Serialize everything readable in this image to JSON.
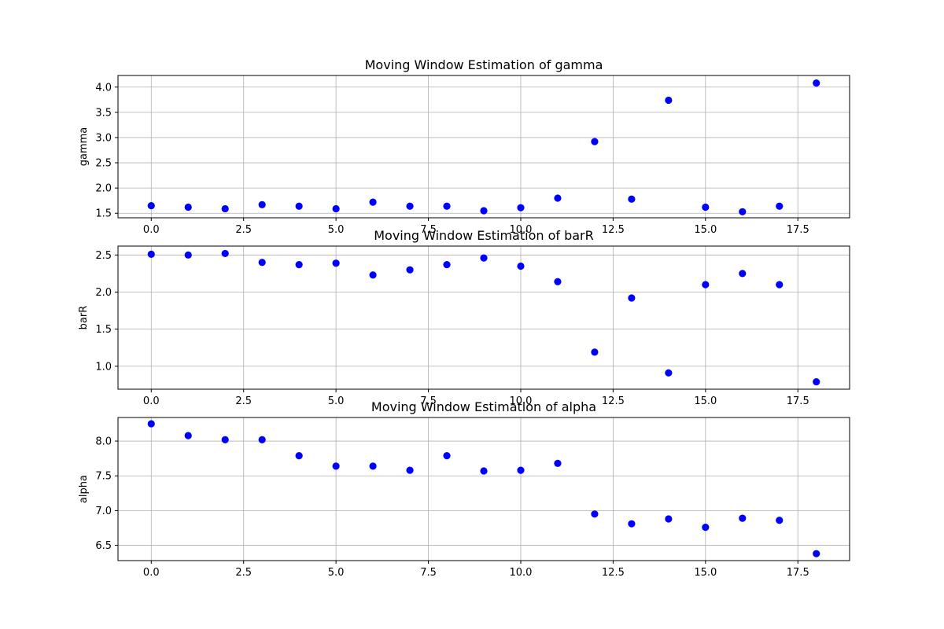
{
  "colors": {
    "marker": "#0000ff",
    "grid": "#b0b0b0",
    "axes": "#000000",
    "background": "#ffffff"
  },
  "chart_data": [
    {
      "type": "scatter",
      "title": "Moving Window Estimation of gamma",
      "xlabel": "",
      "ylabel": "gamma",
      "grid": true,
      "xlim": [
        -0.9,
        18.9
      ],
      "ylim": [
        1.41,
        4.23
      ],
      "xticks": [
        0.0,
        2.5,
        5.0,
        7.5,
        10.0,
        12.5,
        15.0,
        17.5
      ],
      "xtick_labels": [
        "0.0",
        "2.5",
        "5.0",
        "7.5",
        "10.0",
        "12.5",
        "15.0",
        "17.5"
      ],
      "yticks": [
        1.5,
        2.0,
        2.5,
        3.0,
        3.5,
        4.0
      ],
      "ytick_labels": [
        "1.5",
        "2.0",
        "2.5",
        "3.0",
        "3.5",
        "4.0"
      ],
      "x": [
        0,
        1,
        2,
        3,
        4,
        5,
        6,
        7,
        8,
        9,
        10,
        11,
        12,
        13,
        14,
        15,
        16,
        17,
        18
      ],
      "y": [
        1.65,
        1.62,
        1.59,
        1.67,
        1.64,
        1.59,
        1.72,
        1.64,
        1.64,
        1.55,
        1.61,
        1.8,
        2.92,
        1.78,
        3.74,
        1.62,
        1.53,
        1.64,
        4.08
      ]
    },
    {
      "type": "scatter",
      "title": "Moving Window Estimation of barR",
      "xlabel": "",
      "ylabel": "barR",
      "grid": true,
      "xlim": [
        -0.9,
        18.9
      ],
      "ylim": [
        0.69,
        2.62
      ],
      "xticks": [
        0.0,
        2.5,
        5.0,
        7.5,
        10.0,
        12.5,
        15.0,
        17.5
      ],
      "xtick_labels": [
        "0.0",
        "2.5",
        "5.0",
        "7.5",
        "10.0",
        "12.5",
        "15.0",
        "17.5"
      ],
      "yticks": [
        1.0,
        1.5,
        2.0,
        2.5
      ],
      "ytick_labels": [
        "1.0",
        "1.5",
        "2.0",
        "2.5"
      ],
      "x": [
        0,
        1,
        2,
        3,
        4,
        5,
        6,
        7,
        8,
        9,
        10,
        11,
        12,
        13,
        14,
        15,
        16,
        17,
        18
      ],
      "y": [
        2.51,
        2.5,
        2.52,
        2.4,
        2.37,
        2.39,
        2.23,
        2.3,
        2.37,
        2.46,
        2.35,
        2.14,
        1.19,
        1.92,
        0.91,
        2.1,
        2.25,
        2.1,
        0.79
      ]
    },
    {
      "type": "scatter",
      "title": "Moving Window Estimation of alpha",
      "xlabel": "",
      "ylabel": "alpha",
      "grid": true,
      "xlim": [
        -0.9,
        18.9
      ],
      "ylim": [
        6.28,
        8.34
      ],
      "xticks": [
        0.0,
        2.5,
        5.0,
        7.5,
        10.0,
        12.5,
        15.0,
        17.5
      ],
      "xtick_labels": [
        "0.0",
        "2.5",
        "5.0",
        "7.5",
        "10.0",
        "12.5",
        "15.0",
        "17.5"
      ],
      "yticks": [
        6.5,
        7.0,
        7.5,
        8.0
      ],
      "ytick_labels": [
        "6.5",
        "7.0",
        "7.5",
        "8.0"
      ],
      "x": [
        0,
        1,
        2,
        3,
        4,
        5,
        6,
        7,
        8,
        9,
        10,
        11,
        12,
        13,
        14,
        15,
        16,
        17,
        18
      ],
      "y": [
        8.25,
        8.08,
        8.02,
        8.02,
        7.79,
        7.64,
        7.64,
        7.58,
        7.79,
        7.57,
        7.58,
        7.68,
        6.95,
        6.81,
        6.88,
        6.76,
        6.89,
        6.86,
        6.38
      ]
    }
  ]
}
